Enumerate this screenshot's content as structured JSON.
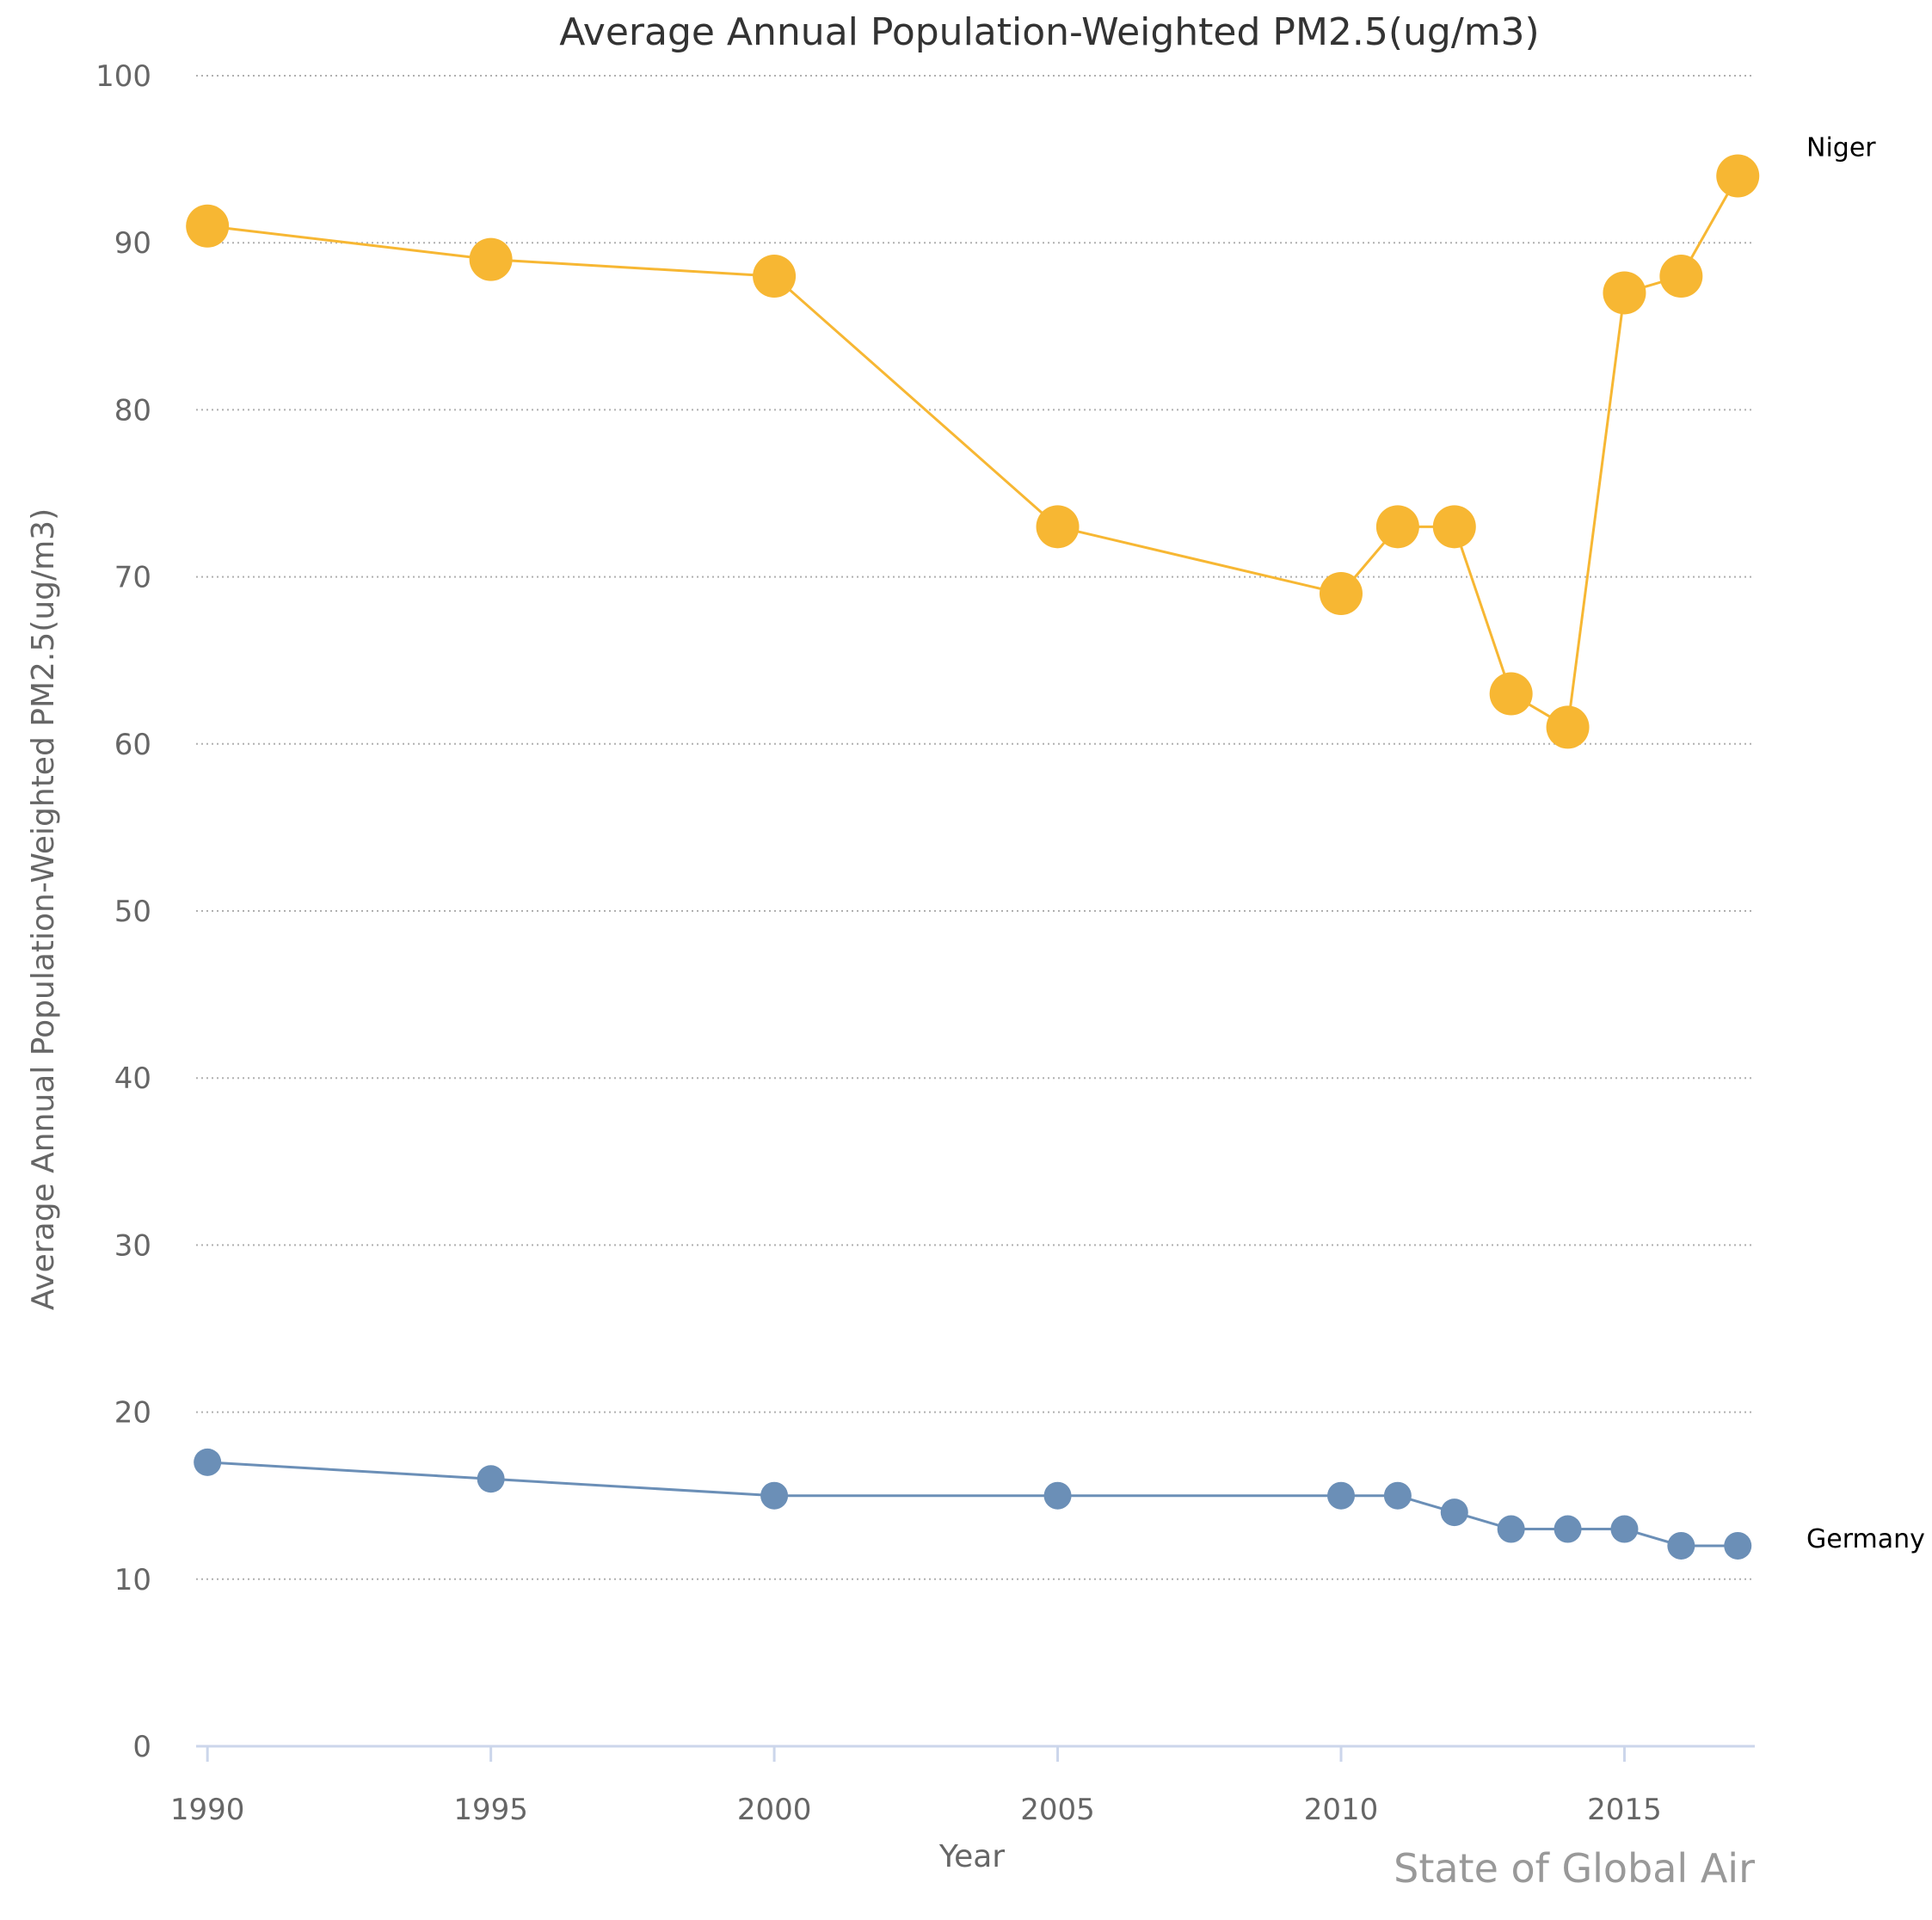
{
  "chart_data": {
    "type": "line",
    "title": "Average Annual Population-Weighted PM2.5(ug/m3)",
    "xlabel": "Year",
    "ylabel": "Average Annual Population-Weighted PM2.5(ug/m3)",
    "xlim": [
      1989.8,
      2017.3
    ],
    "ylim": [
      0,
      100
    ],
    "x_ticks": [
      1990,
      1995,
      2000,
      2005,
      2010,
      2015
    ],
    "y_ticks": [
      0,
      10,
      20,
      30,
      40,
      50,
      60,
      70,
      80,
      90,
      100
    ],
    "grid": true,
    "x": [
      1990,
      1995,
      2000,
      2005,
      2010,
      2011,
      2012,
      2013,
      2014,
      2015,
      2016,
      2017
    ],
    "series": [
      {
        "name": "Niger",
        "color": "#F7B733",
        "values": [
          91,
          89,
          88,
          73,
          69,
          73,
          73,
          63,
          61,
          87,
          88,
          94
        ]
      },
      {
        "name": "Germany",
        "color": "#6B8FB7",
        "values": [
          17,
          16,
          15,
          15,
          15,
          15,
          14,
          13,
          13,
          13,
          12,
          12
        ]
      }
    ],
    "credit": "State of Global Air"
  }
}
